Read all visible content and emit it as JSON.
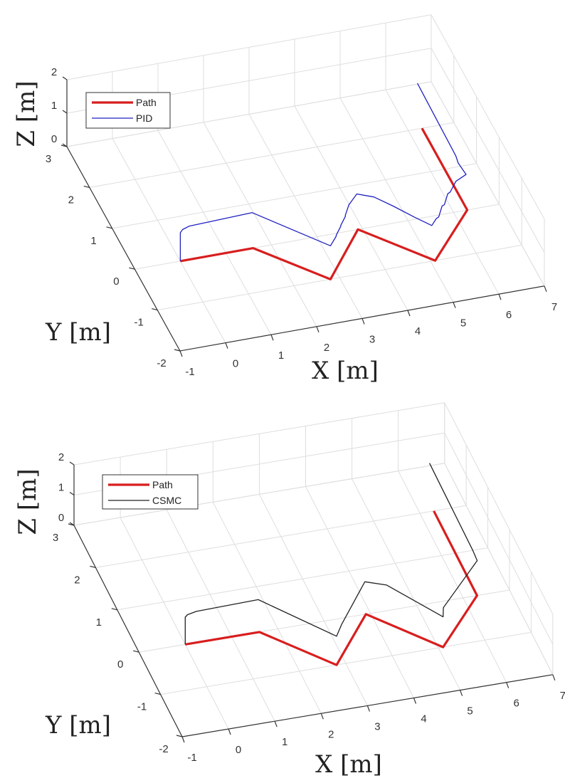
{
  "chart_data": [
    {
      "type": "line3d",
      "xlabel": "X [m]",
      "ylabel": "Y [m]",
      "zlabel": "Z [m]",
      "xlim": [
        -1,
        7
      ],
      "ylim": [
        -2,
        3
      ],
      "zlim": [
        0,
        2
      ],
      "xticks": [
        "-1",
        "0",
        "1",
        "2",
        "3",
        "4",
        "5",
        "6",
        "7"
      ],
      "yticks": [
        "-2",
        "-1",
        "0",
        "1",
        "2",
        "3"
      ],
      "zticks": [
        "0",
        "1",
        "2"
      ],
      "grid": true,
      "legend_position": "top-left",
      "series": [
        {
          "name": "Path",
          "color": "#d81e1e",
          "points": [
            [
              0,
              0,
              0
            ],
            [
              1.6,
              0,
              0
            ],
            [
              2.8,
              -1,
              0
            ],
            [
              3.9,
              0,
              0
            ],
            [
              5.1,
              -1,
              0
            ],
            [
              6.3,
              0,
              0
            ],
            [
              6.3,
              2,
              0
            ]
          ]
        },
        {
          "name": "PID",
          "color": "#2020c0",
          "points": [
            [
              0,
              0,
              0
            ],
            [
              0,
              0,
              0.85
            ],
            [
              0.05,
              0,
              0.93
            ],
            [
              0.2,
              0.02,
              0.97
            ],
            [
              1.6,
              0.05,
              1.0
            ],
            [
              2.8,
              -1,
              1.0
            ],
            [
              3.0,
              -0.85,
              1.05
            ],
            [
              3.05,
              -0.75,
              0.95
            ],
            [
              3.2,
              -0.65,
              1.06
            ],
            [
              3.25,
              -0.55,
              0.95
            ],
            [
              3.4,
              -0.45,
              1.06
            ],
            [
              3.45,
              -0.35,
              0.96
            ],
            [
              3.6,
              -0.2,
              1.05
            ],
            [
              3.9,
              0.05,
              1.0
            ],
            [
              4.2,
              -0.1,
              1.02
            ],
            [
              4.5,
              -0.35,
              0.98
            ],
            [
              4.8,
              -0.7,
              1.0
            ],
            [
              5.05,
              -0.95,
              1.0
            ],
            [
              5.2,
              -0.85,
              1.05
            ],
            [
              5.3,
              -0.75,
              0.95
            ],
            [
              5.45,
              -0.6,
              1.06
            ],
            [
              5.55,
              -0.5,
              0.95
            ],
            [
              5.7,
              -0.35,
              1.06
            ],
            [
              5.8,
              -0.25,
              0.96
            ],
            [
              6.0,
              -0.1,
              1.05
            ],
            [
              6.3,
              0.05,
              1.0
            ],
            [
              6.25,
              0.3,
              1.05
            ],
            [
              6.3,
              0.5,
              1.0
            ],
            [
              6.3,
              2.2,
              1.1
            ]
          ]
        }
      ]
    },
    {
      "type": "line3d",
      "xlabel": "X [m]",
      "ylabel": "Y [m]",
      "zlabel": "Z [m]",
      "xlim": [
        -1,
        7
      ],
      "ylim": [
        -2,
        3
      ],
      "zlim": [
        0,
        2
      ],
      "xticks": [
        "-1",
        "0",
        "1",
        "2",
        "3",
        "4",
        "5",
        "6",
        "7"
      ],
      "yticks": [
        "-2",
        "-1",
        "0",
        "1",
        "2",
        "3"
      ],
      "zticks": [
        "0",
        "1",
        "2"
      ],
      "grid": true,
      "legend_position": "top-left",
      "series": [
        {
          "name": "Path",
          "color": "#d81e1e",
          "points": [
            [
              0,
              0,
              0
            ],
            [
              1.6,
              0,
              0
            ],
            [
              2.8,
              -1,
              0
            ],
            [
              3.9,
              0,
              0
            ],
            [
              5.1,
              -1,
              0
            ],
            [
              6.3,
              0,
              0
            ],
            [
              6.3,
              2,
              0
            ]
          ]
        },
        {
          "name": "CSMC",
          "color": "#222222",
          "points": [
            [
              0,
              0,
              0
            ],
            [
              0,
              0,
              0.9
            ],
            [
              0.05,
              0,
              0.97
            ],
            [
              0.25,
              0.02,
              1.0
            ],
            [
              1.6,
              0.05,
              1.0
            ],
            [
              2.8,
              -1,
              0.95
            ],
            [
              3.0,
              -0.8,
              1.0
            ],
            [
              3.9,
              0.05,
              1.0
            ],
            [
              4.3,
              -0.1,
              1.0
            ],
            [
              5.1,
              -1,
              1.0
            ],
            [
              5.2,
              -0.8,
              1.0
            ],
            [
              6.35,
              0.1,
              1.0
            ],
            [
              6.35,
              0.3,
              1.05
            ],
            [
              6.3,
              2.2,
              1.3
            ]
          ]
        }
      ]
    }
  ]
}
